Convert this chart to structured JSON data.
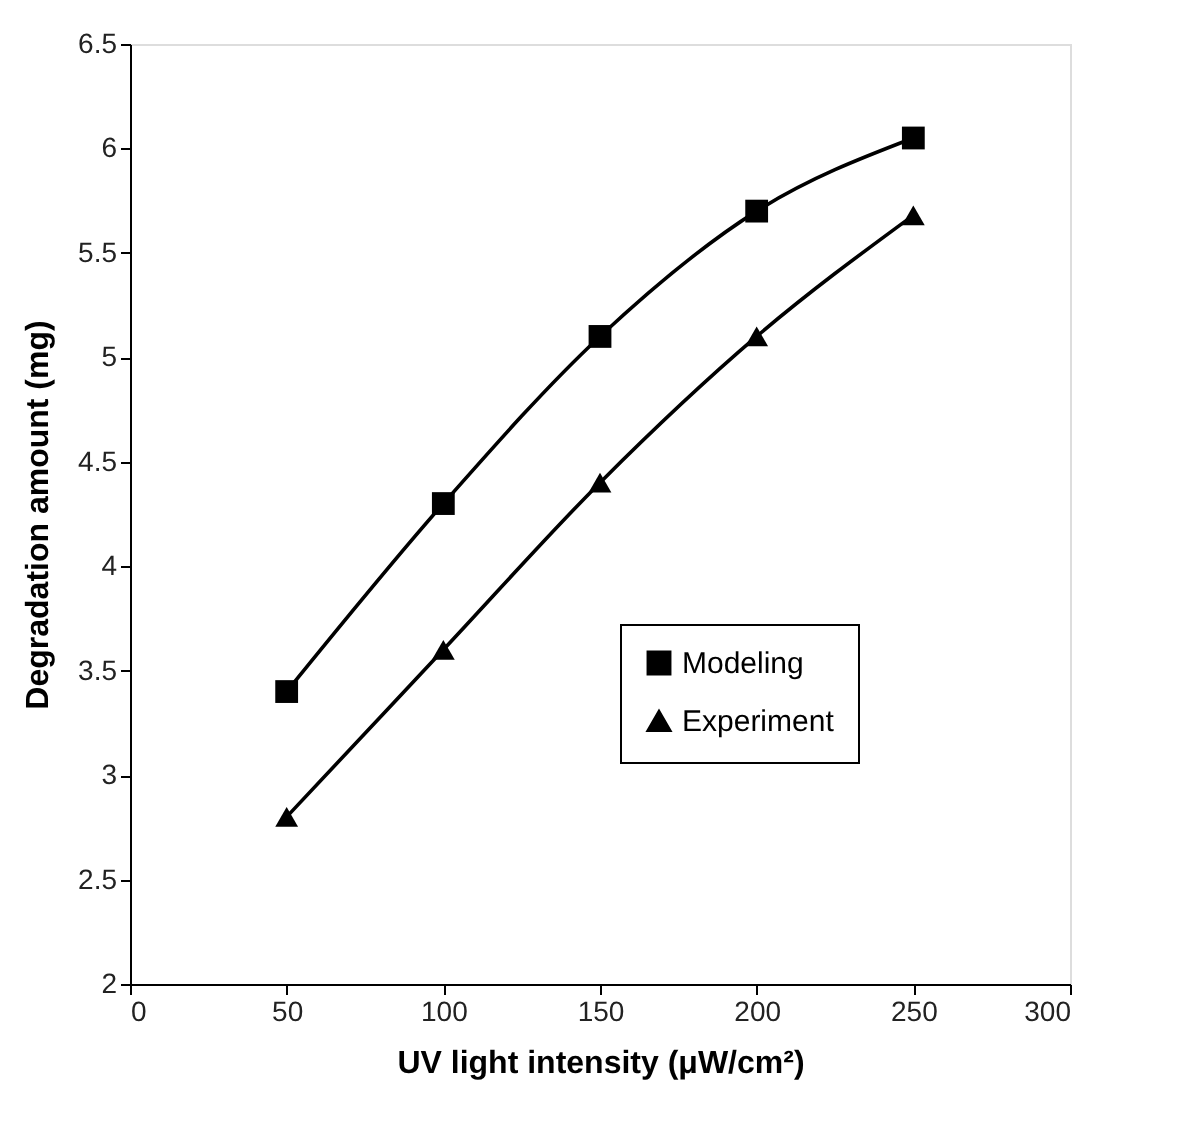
{
  "chart_data": {
    "type": "line",
    "xlabel": "UV light intensity (μW/cm²)",
    "ylabel": "Degradation amount (mg)",
    "x": [
      50,
      100,
      150,
      200,
      250
    ],
    "series": [
      {
        "name": "Modeling",
        "color": "#000000",
        "marker": "square",
        "values": [
          3.4,
          4.3,
          5.1,
          5.7,
          6.05
        ]
      },
      {
        "name": "Experiment",
        "color": "#000000",
        "marker": "triangle",
        "values": [
          2.8,
          3.6,
          4.4,
          5.1,
          5.68
        ]
      }
    ],
    "xlim": [
      0,
      300
    ],
    "xticks": [
      0,
      50,
      100,
      150,
      200,
      250,
      300
    ],
    "ylim": [
      2,
      6.5
    ],
    "yticks": [
      2,
      2.5,
      3,
      3.5,
      4,
      4.5,
      5,
      5.5,
      6,
      6.5
    ],
    "grid": false,
    "legend": "right",
    "line_style": "solid"
  }
}
